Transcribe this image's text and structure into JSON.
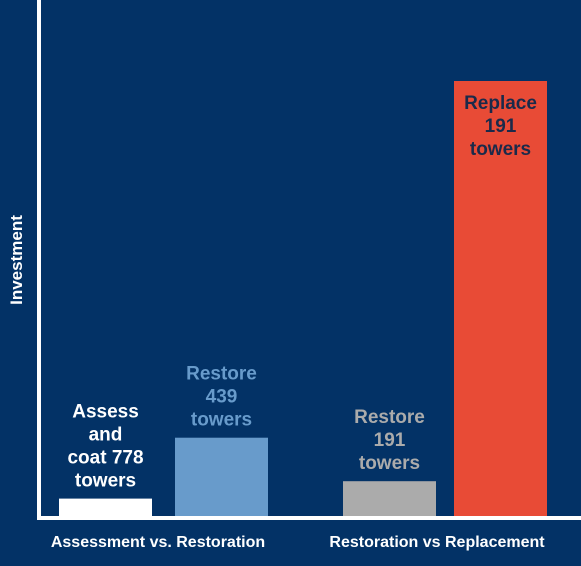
{
  "chart_data": {
    "type": "bar",
    "title": "",
    "ylabel": "Investment",
    "xlabel": "",
    "groups": [
      {
        "name": "Assessment vs. Restoration",
        "bars": [
          {
            "label": [
              "Assess",
              "and",
              "coat 778",
              "towers"
            ],
            "value": 4,
            "color": "#ffffff",
            "label_color": "#ffffff"
          },
          {
            "label": [
              "Restore",
              "439",
              "towers"
            ],
            "value": 18,
            "color": "#689bcb",
            "label_color": "#689bcb"
          }
        ]
      },
      {
        "name": "Restoration vs Replacement",
        "bars": [
          {
            "label": [
              "Restore",
              "191",
              "towers"
            ],
            "value": 8,
            "color": "#ababab",
            "label_color": "#ababab"
          },
          {
            "label": [
              "Replace",
              "191",
              "towers"
            ],
            "value": 100,
            "color": "#e84b36",
            "label_color": "#1a2a4a"
          }
        ]
      }
    ],
    "ylim": [
      0,
      100
    ],
    "grid": false,
    "legend": "none",
    "axis_color": "#ffffff",
    "background": "#033266"
  }
}
